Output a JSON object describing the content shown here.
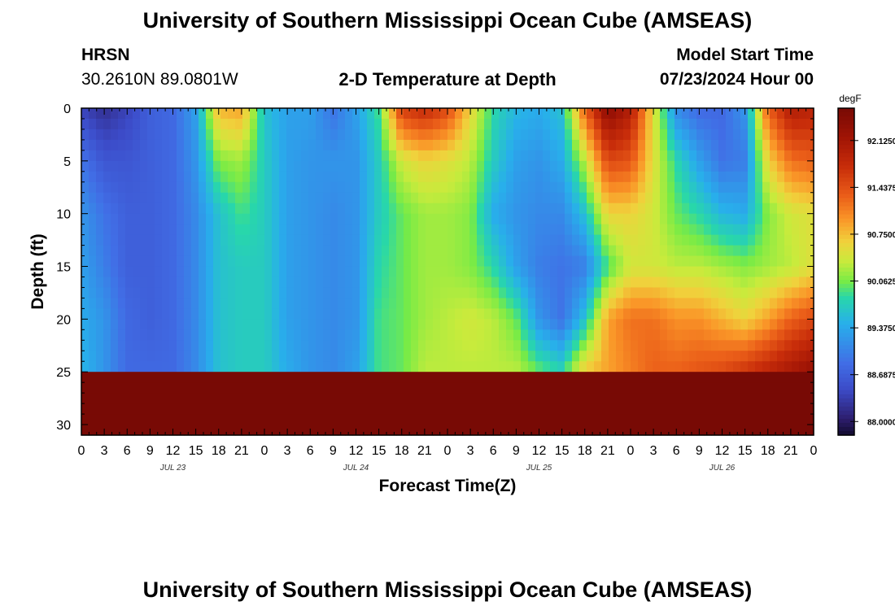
{
  "header": {
    "title": "University of Southern Mississippi Ocean Cube (AMSEAS)",
    "station": "HRSN",
    "coords": "30.2610N  89.0801W",
    "subtitle": "2-D Temperature at Depth",
    "model_start_label": "Model Start Time",
    "model_start_value": "07/23/2024 Hour 00"
  },
  "footer": {
    "title": "University of Southern Mississippi Ocean Cube (AMSEAS)"
  },
  "chart_data": {
    "type": "heatmap",
    "xlabel": "Forecast Time(Z)",
    "ylabel": "Depth (ft)",
    "x_range_hours": [
      0,
      96
    ],
    "y_range_ft": [
      0,
      31
    ],
    "y_inverted": true,
    "x_tick_labels": [
      "0",
      "3",
      "6",
      "9",
      "12",
      "15",
      "18",
      "21",
      "0",
      "3",
      "6",
      "9",
      "12",
      "15",
      "18",
      "21",
      "0",
      "3",
      "6",
      "9",
      "12",
      "15",
      "18",
      "21",
      "0",
      "3",
      "6",
      "9",
      "12",
      "15",
      "18",
      "21",
      "0"
    ],
    "x_tick_hours": [
      0,
      3,
      6,
      9,
      12,
      15,
      18,
      21,
      24,
      27,
      30,
      33,
      36,
      39,
      42,
      45,
      48,
      51,
      54,
      57,
      60,
      63,
      66,
      69,
      72,
      75,
      78,
      81,
      84,
      87,
      90,
      93,
      96
    ],
    "y_ticks": [
      0,
      5,
      10,
      15,
      20,
      25,
      30
    ],
    "y_tick_labels": [
      "0",
      "5",
      "10",
      "15",
      "20",
      "25",
      "30"
    ],
    "date_labels": [
      {
        "hour": 12,
        "label": "JUL 23"
      },
      {
        "hour": 36,
        "label": "JUL 24"
      },
      {
        "hour": 60,
        "label": "JUL 25"
      },
      {
        "hour": 84,
        "label": "JUL 26"
      }
    ],
    "colorbar": {
      "unit": "degF",
      "min": 87.8,
      "max": 92.6,
      "ticks": [
        88.0,
        88.6875,
        89.375,
        90.0625,
        90.75,
        91.4375,
        92.125
      ],
      "tick_labels": [
        "88.0000",
        "88.6875",
        "89.3750",
        "90.0625",
        "90.7500",
        "91.4375",
        "92.1250"
      ]
    },
    "time_hours": [
      0,
      3,
      6,
      9,
      12,
      15,
      18,
      21,
      24,
      27,
      30,
      33,
      36,
      39,
      42,
      45,
      48,
      51,
      54,
      57,
      60,
      63,
      66,
      69,
      72,
      75,
      78,
      81,
      84,
      87,
      90,
      93,
      96
    ],
    "depth_ft": [
      0,
      5,
      10,
      15,
      20,
      25,
      31
    ],
    "values_degF": [
      [
        88.4,
        88.9,
        89.2,
        89.3,
        89.4,
        89.5
      ],
      [
        88.2,
        88.6,
        88.9,
        89.0,
        89.2,
        89.2
      ],
      [
        88.4,
        88.6,
        88.7,
        88.7,
        88.8,
        88.8
      ],
      [
        88.7,
        88.7,
        88.7,
        88.7,
        88.7,
        88.8
      ],
      [
        88.8,
        88.8,
        88.8,
        88.8,
        88.8,
        88.8
      ],
      [
        89.3,
        89.2,
        89.1,
        89.1,
        89.1,
        89.1
      ],
      [
        90.8,
        90.1,
        89.6,
        89.6,
        89.6,
        89.6
      ],
      [
        90.9,
        90.2,
        89.9,
        89.7,
        89.7,
        89.7
      ],
      [
        89.6,
        89.7,
        89.7,
        89.7,
        89.7,
        89.7
      ],
      [
        89.3,
        89.3,
        89.3,
        89.3,
        89.3,
        89.4
      ],
      [
        89.3,
        89.2,
        89.2,
        89.2,
        89.2,
        89.2
      ],
      [
        88.9,
        89.2,
        89.1,
        89.1,
        89.1,
        89.1
      ],
      [
        89.3,
        89.2,
        89.2,
        89.2,
        89.2,
        89.3
      ],
      [
        89.9,
        89.7,
        89.7,
        89.8,
        89.9,
        89.9
      ],
      [
        91.6,
        90.4,
        90.0,
        90.0,
        90.0,
        90.0
      ],
      [
        91.8,
        90.6,
        90.2,
        90.2,
        90.2,
        90.3
      ],
      [
        91.5,
        90.5,
        90.2,
        90.2,
        90.3,
        90.3
      ],
      [
        90.6,
        90.3,
        90.1,
        90.1,
        90.4,
        90.3
      ],
      [
        89.8,
        89.7,
        89.4,
        89.8,
        90.3,
        90.3
      ],
      [
        89.5,
        89.3,
        89.2,
        89.3,
        90.0,
        90.3
      ],
      [
        89.4,
        89.2,
        89.1,
        89.0,
        89.2,
        90.0
      ],
      [
        89.6,
        89.4,
        89.1,
        88.9,
        88.9,
        89.8
      ],
      [
        91.3,
        90.3,
        89.6,
        89.0,
        89.6,
        90.7
      ],
      [
        92.4,
        91.5,
        90.6,
        89.9,
        90.9,
        90.9
      ],
      [
        92.0,
        91.4,
        90.6,
        90.4,
        91.2,
        91.1
      ],
      [
        90.5,
        90.5,
        90.4,
        90.4,
        91.2,
        91.3
      ],
      [
        89.1,
        89.8,
        90.0,
        90.3,
        91.0,
        91.3
      ],
      [
        88.8,
        89.3,
        89.8,
        90.3,
        91.0,
        91.4
      ],
      [
        88.8,
        88.9,
        89.5,
        90.2,
        90.8,
        91.5
      ],
      [
        89.2,
        89.0,
        89.4,
        90.1,
        90.6,
        91.7
      ],
      [
        91.3,
        90.6,
        90.1,
        90.2,
        90.9,
        91.9
      ],
      [
        92.0,
        91.2,
        90.4,
        90.3,
        91.3,
        92.1
      ],
      [
        91.9,
        91.3,
        90.5,
        90.5,
        91.5,
        92.3
      ]
    ]
  }
}
